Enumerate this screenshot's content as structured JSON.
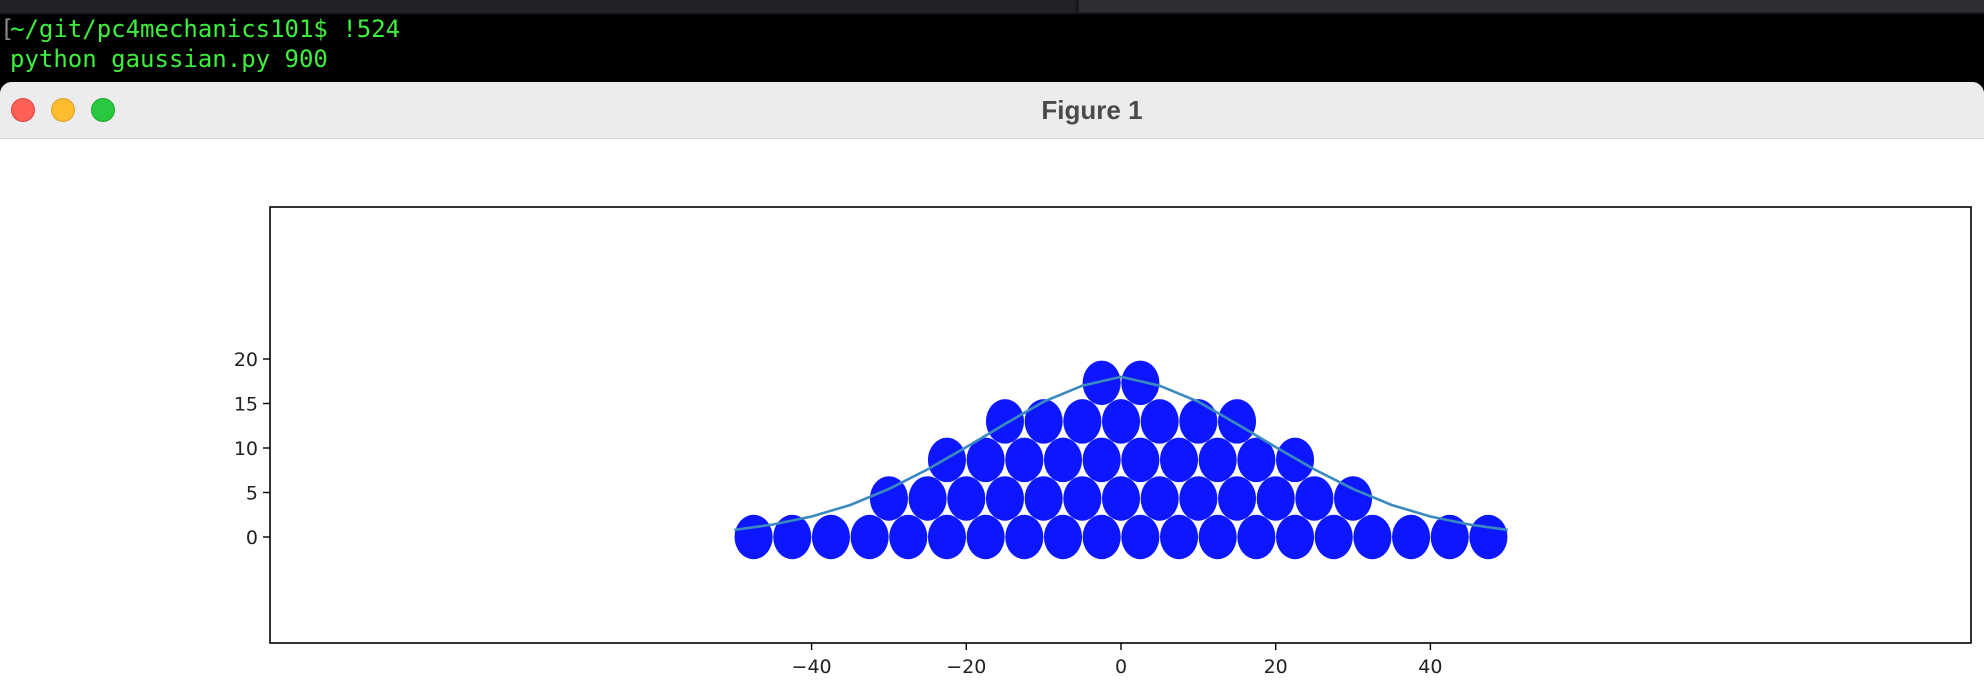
{
  "terminal": {
    "line1": "~/git/pc4mechanics101$ !524",
    "line2": "python gaussian.py 900",
    "bracket": "["
  },
  "window": {
    "title": "Figure 1"
  },
  "colors": {
    "terminal_bg": "#000000",
    "terminal_text": "#3ef03e",
    "circle_fill": "#0c17ff",
    "curve": "#3a8abf",
    "close": "#fe5f57",
    "minimize": "#febc2e",
    "zoom": "#28c840"
  },
  "chart_data": {
    "type": "scatter",
    "title": "",
    "xlabel": "",
    "ylabel": "",
    "xlim": [
      -55,
      55
    ],
    "ylim": [
      -3.6,
      21
    ],
    "xticks": [
      -40,
      -20,
      0,
      20,
      40
    ],
    "yticks": [
      0,
      5,
      10,
      15,
      20
    ],
    "xtick_labels": [
      "−40",
      "−20",
      "0",
      "20",
      "40"
    ],
    "ytick_labels": [
      "0",
      "5",
      "10",
      "15",
      "20"
    ],
    "circle_radius": 2.5,
    "circles": {
      "rows": [
        {
          "y": 0,
          "x": [
            -47.5,
            -42.5,
            -37.5,
            -32.5,
            -27.5,
            -22.5,
            -17.5,
            -12.5,
            -7.5,
            -2.5,
            2.5,
            7.5,
            12.5,
            17.5,
            22.5,
            27.5,
            32.5,
            37.5,
            42.5,
            47.5
          ]
        },
        {
          "y": 4.33,
          "x": [
            -30,
            -25,
            -20,
            -15,
            -10,
            -5,
            0,
            5,
            10,
            15,
            20,
            25,
            30
          ]
        },
        {
          "y": 8.66,
          "x": [
            -22.5,
            -17.5,
            -12.5,
            -7.5,
            -2.5,
            2.5,
            7.5,
            12.5,
            17.5,
            22.5
          ]
        },
        {
          "y": 12.99,
          "x": [
            -15,
            -10,
            -5,
            0,
            5,
            10,
            15
          ]
        },
        {
          "y": 17.32,
          "x": [
            -2.5,
            2.5
          ]
        }
      ]
    },
    "curve": {
      "x": [
        -50,
        -45,
        -40,
        -35,
        -30,
        -25,
        -20,
        -15,
        -10,
        -5,
        0,
        5,
        10,
        15,
        20,
        25,
        30,
        35,
        40,
        45,
        50
      ],
      "y": [
        0.8,
        1.4,
        2.3,
        3.6,
        5.4,
        7.6,
        10.1,
        12.7,
        15.2,
        17.0,
        18.0,
        17.0,
        15.2,
        12.7,
        10.1,
        7.6,
        5.4,
        3.6,
        2.3,
        1.4,
        0.8
      ]
    }
  }
}
